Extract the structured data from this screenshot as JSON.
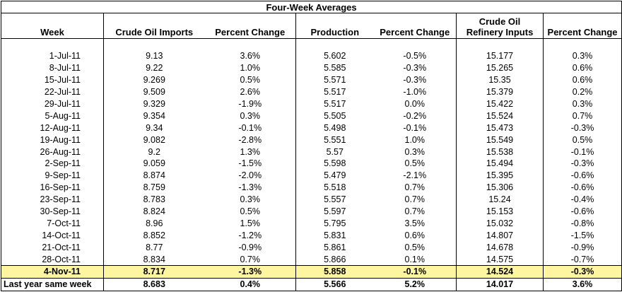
{
  "title": "Four-Week Averages",
  "table": {
    "header": [
      "Week",
      "Crude Oil Imports",
      "Percent Change",
      "Production",
      "Percent Change",
      "Crude Oil\nRefinery Inputs",
      "Percent Change"
    ],
    "rows": [
      [
        "1-Jul-11",
        "9.13",
        "3.6%",
        "5.602",
        "-0.5%",
        "15.177",
        "0.3%"
      ],
      [
        "8-Jul-11",
        "9.22",
        "1.0%",
        "5.585",
        "-0.3%",
        "15.265",
        "0.6%"
      ],
      [
        "15-Jul-11",
        "9.269",
        "0.5%",
        "5.571",
        "-0.3%",
        "15.35",
        "0.6%"
      ],
      [
        "22-Jul-11",
        "9.509",
        "2.6%",
        "5.517",
        "-1.0%",
        "15.379",
        "0.2%"
      ],
      [
        "29-Jul-11",
        "9.329",
        "-1.9%",
        "5.517",
        "0.0%",
        "15.422",
        "0.3%"
      ],
      [
        "5-Aug-11",
        "9.354",
        "0.3%",
        "5.505",
        "-0.2%",
        "15.524",
        "0.7%"
      ],
      [
        "12-Aug-11",
        "9.34",
        "-0.1%",
        "5.498",
        "-0.1%",
        "15.473",
        "-0.3%"
      ],
      [
        "19-Aug-11",
        "9.082",
        "-2.8%",
        "5.551",
        "1.0%",
        "15.549",
        "0.5%"
      ],
      [
        "26-Aug-11",
        "9.2",
        "1.3%",
        "5.57",
        "0.3%",
        "15.538",
        "-0.1%"
      ],
      [
        "2-Sep-11",
        "9.059",
        "-1.5%",
        "5.598",
        "0.5%",
        "15.494",
        "-0.3%"
      ],
      [
        "9-Sep-11",
        "8.874",
        "-2.0%",
        "5.479",
        "-2.1%",
        "15.395",
        "-0.6%"
      ],
      [
        "16-Sep-11",
        "8.759",
        "-1.3%",
        "5.518",
        "0.7%",
        "15.306",
        "-0.6%"
      ],
      [
        "23-Sep-11",
        "8.783",
        "0.3%",
        "5.557",
        "0.7%",
        "15.24",
        "-0.4%"
      ],
      [
        "30-Sep-11",
        "8.824",
        "0.5%",
        "5.597",
        "0.7%",
        "15.153",
        "-0.6%"
      ],
      [
        "7-Oct-11",
        "8.96",
        "1.5%",
        "5.795",
        "3.5%",
        "15.032",
        "-0.8%"
      ],
      [
        "14-Oct-11",
        "8.852",
        "-1.2%",
        "5.831",
        "0.6%",
        "14.807",
        "-1.5%"
      ],
      [
        "21-Oct-11",
        "8.77",
        "-0.9%",
        "5.861",
        "0.5%",
        "14.678",
        "-0.9%"
      ],
      [
        "28-Oct-11",
        "8.834",
        "0.7%",
        "5.866",
        "0.1%",
        "14.575",
        "-0.7%"
      ],
      [
        "4-Nov-11",
        "8.717",
        "-1.3%",
        "5.858",
        "-0.1%",
        "14.524",
        "-0.3%"
      ],
      [
        "Last year same week",
        "8.683",
        "0.4%",
        "5.566",
        "5.2%",
        "14.017",
        "3.6%"
      ]
    ]
  }
}
